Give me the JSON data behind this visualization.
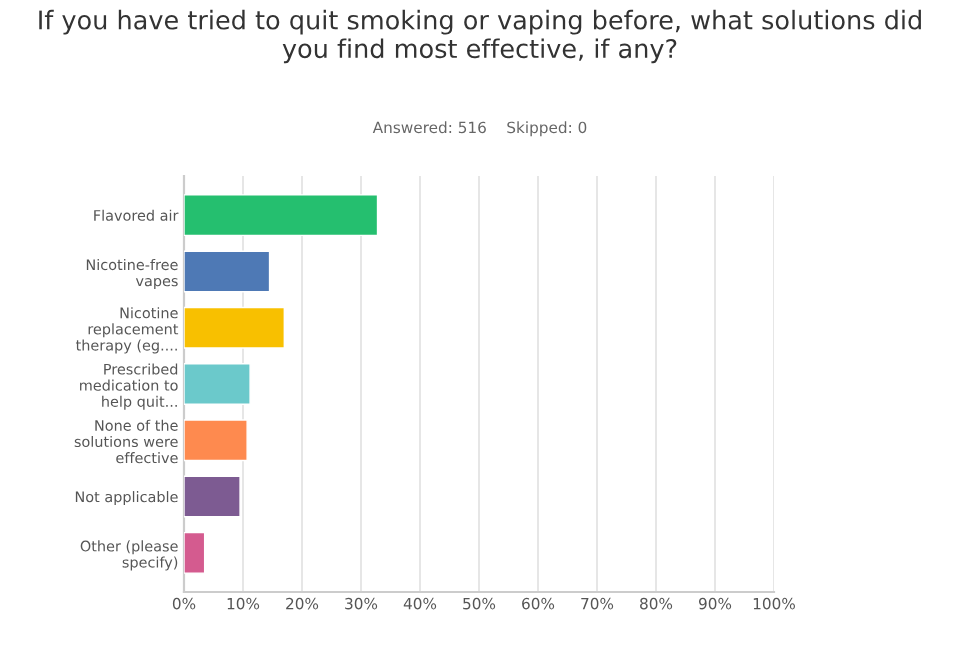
{
  "chart_data": {
    "type": "bar",
    "orientation": "horizontal",
    "title": "If you have tried to quit smoking or vaping before, what solutions did\nyou find most effective, if any?",
    "subtitle": "Answered: 516    Skipped: 0",
    "categories": [
      "Flavored air",
      "Nicotine-free\nvapes",
      "Nicotine\nreplacement\ntherapy (eg....",
      "Prescribed\nmedication to\nhelp quit...",
      "None of the\nsolutions were\neffective",
      "Not applicable",
      "Other (please\nspecify)"
    ],
    "values": [
      32.8,
      14.5,
      17,
      11.2,
      10.7,
      9.5,
      3.5
    ],
    "colors": [
      "#25bf6f",
      "#4e79b5",
      "#f8c000",
      "#6bc9cb",
      "#fe8a4f",
      "#7d5b92",
      "#d45b8f"
    ],
    "xlim": [
      0,
      100
    ],
    "xticks": [
      {
        "value": 0,
        "label": "0%"
      },
      {
        "value": 10,
        "label": "10%"
      },
      {
        "value": 20,
        "label": "20%"
      },
      {
        "value": 30,
        "label": "30%"
      },
      {
        "value": 40,
        "label": "40%"
      },
      {
        "value": 50,
        "label": "50%"
      },
      {
        "value": 60,
        "label": "60%"
      },
      {
        "value": 70,
        "label": "70%"
      },
      {
        "value": 80,
        "label": "80%"
      },
      {
        "value": 90,
        "label": "90%"
      },
      {
        "value": 100,
        "label": "100%"
      }
    ],
    "grid": "x",
    "legend": false
  }
}
